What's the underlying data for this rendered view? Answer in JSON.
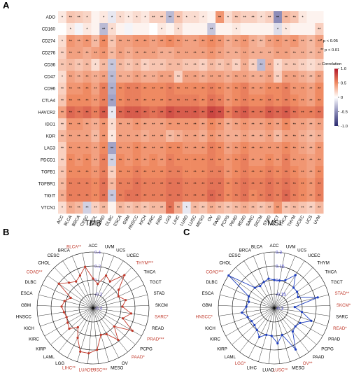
{
  "chart_data": [
    {
      "type": "heatmap",
      "panel": "A",
      "rows": [
        "ADO",
        "CD160",
        "CD274",
        "CD276",
        "CD36",
        "CD47",
        "CD96",
        "CTLA4",
        "HAVCR2",
        "IDO1",
        "KDR",
        "LAG3",
        "PDCD1",
        "TGFB1",
        "TGFBR1",
        "TIGIT",
        "VTCN1"
      ],
      "columns": [
        "ACC",
        "BLCA",
        "BRCA",
        "CESC",
        "CHOL",
        "COAD",
        "DLBC",
        "ESCA",
        "GBM",
        "HNSCC",
        "KICH",
        "KIRC",
        "KIRP",
        "LGG",
        "LIHC",
        "LUAD",
        "LUSC",
        "MESO",
        "OV",
        "PAAD",
        "PCPG",
        "PRAD",
        "READ",
        "SARC",
        "SKCM",
        "STAD",
        "TGCT",
        "THCA",
        "THYM",
        "UCEC",
        "UCS",
        "UVM"
      ],
      "values": [
        [
          0.1,
          0.25,
          0.22,
          0.18,
          0.05,
          0.1,
          -0.1,
          0.15,
          0.1,
          0.15,
          0.1,
          0.2,
          0.2,
          -0.3,
          0.25,
          0.15,
          0.15,
          0.1,
          0.05,
          0.45,
          0.15,
          0.25,
          0.2,
          0.2,
          0.15,
          0.2,
          -0.5,
          0.3,
          0.25,
          0.1,
          0.05,
          0.05
        ],
        [
          0.0,
          0.1,
          -0.05,
          0.1,
          0.05,
          -0.3,
          0.15,
          0.05,
          -0.05,
          0.05,
          0.05,
          0.0,
          0.1,
          0.05,
          0.15,
          0.05,
          0.05,
          0.05,
          -0.25,
          0.05,
          0.05,
          0.1,
          0.05,
          0.05,
          0.05,
          0.05,
          -0.15,
          0.1,
          0.05,
          0.05,
          0.05,
          0.2
        ],
        [
          0.15,
          0.45,
          0.4,
          0.45,
          0.3,
          0.5,
          0.25,
          0.4,
          0.4,
          0.45,
          0.45,
          0.4,
          0.45,
          0.5,
          0.45,
          0.4,
          0.4,
          0.45,
          0.5,
          0.45,
          0.35,
          0.4,
          0.45,
          0.35,
          0.3,
          0.4,
          0.45,
          0.4,
          0.45,
          0.35,
          0.3,
          0.4
        ],
        [
          0.2,
          0.4,
          0.4,
          0.35,
          0.4,
          0.45,
          0.3,
          0.4,
          0.35,
          0.4,
          0.4,
          0.4,
          0.35,
          0.35,
          0.4,
          0.4,
          0.4,
          0.4,
          0.45,
          0.4,
          0.35,
          0.35,
          0.4,
          0.35,
          0.35,
          0.35,
          0.4,
          0.4,
          0.35,
          0.35,
          0.3,
          0.35
        ],
        [
          0.25,
          0.3,
          0.25,
          0.3,
          0.15,
          0.3,
          -0.25,
          0.3,
          0.25,
          0.3,
          0.2,
          0.25,
          0.25,
          0.3,
          0.3,
          0.25,
          0.25,
          0.2,
          0.3,
          0.25,
          0.3,
          0.2,
          0.35,
          0.2,
          -0.3,
          0.35,
          0.15,
          0.25,
          0.25,
          0.2,
          0.15,
          0.2
        ],
        [
          0.15,
          0.4,
          0.35,
          0.4,
          0.35,
          0.4,
          -0.3,
          0.35,
          0.35,
          0.4,
          0.35,
          0.35,
          0.4,
          0.4,
          0.2,
          0.4,
          0.4,
          0.35,
          0.4,
          0.4,
          0.35,
          0.4,
          0.4,
          0.35,
          0.35,
          0.4,
          0.2,
          0.4,
          0.4,
          0.35,
          0.3,
          0.4
        ],
        [
          0.2,
          0.45,
          0.45,
          0.5,
          0.4,
          0.55,
          -0.35,
          0.5,
          0.55,
          0.55,
          0.5,
          0.5,
          0.5,
          0.55,
          0.5,
          0.5,
          0.5,
          0.5,
          0.55,
          0.5,
          0.45,
          0.5,
          0.55,
          0.45,
          0.45,
          0.5,
          0.5,
          0.55,
          0.45,
          0.45,
          0.4,
          0.5
        ],
        [
          0.25,
          0.5,
          0.5,
          0.5,
          0.45,
          0.55,
          -0.4,
          0.5,
          0.55,
          0.55,
          0.5,
          0.5,
          0.5,
          0.55,
          0.55,
          0.55,
          0.55,
          0.5,
          0.6,
          0.55,
          0.45,
          0.5,
          0.55,
          0.5,
          0.5,
          0.55,
          0.5,
          0.55,
          0.5,
          0.45,
          0.4,
          0.5
        ],
        [
          0.4,
          0.65,
          0.6,
          0.65,
          0.55,
          0.7,
          -0.1,
          0.65,
          0.7,
          0.7,
          0.65,
          0.6,
          0.65,
          0.75,
          0.7,
          0.7,
          0.7,
          0.65,
          0.8,
          0.75,
          0.55,
          0.65,
          0.7,
          0.6,
          0.6,
          0.7,
          0.65,
          0.7,
          0.6,
          0.55,
          0.55,
          0.6
        ],
        [
          0.2,
          0.45,
          0.45,
          0.4,
          0.35,
          0.45,
          0.15,
          0.4,
          0.4,
          0.45,
          0.4,
          0.4,
          0.4,
          0.45,
          0.45,
          0.45,
          0.45,
          0.4,
          0.5,
          0.45,
          0.35,
          0.4,
          0.45,
          0.4,
          0.4,
          0.45,
          0.4,
          0.5,
          0.4,
          0.4,
          0.35,
          0.4
        ],
        [
          0.3,
          0.4,
          0.4,
          0.4,
          0.3,
          0.45,
          0.1,
          0.4,
          0.4,
          0.4,
          0.35,
          0.4,
          0.4,
          0.3,
          0.35,
          0.4,
          0.4,
          0.35,
          0.45,
          0.4,
          0.35,
          0.35,
          0.4,
          0.35,
          0.35,
          0.4,
          0.3,
          0.4,
          0.4,
          0.35,
          0.3,
          0.35
        ],
        [
          0.2,
          0.45,
          0.45,
          0.45,
          0.4,
          0.5,
          -0.4,
          0.45,
          0.45,
          0.5,
          0.45,
          0.45,
          0.45,
          0.5,
          0.5,
          0.45,
          0.45,
          0.45,
          0.55,
          0.5,
          0.4,
          0.45,
          0.5,
          0.45,
          0.45,
          0.45,
          0.45,
          0.5,
          0.45,
          0.4,
          0.35,
          0.45
        ],
        [
          0.2,
          0.5,
          0.45,
          0.5,
          0.4,
          0.55,
          -0.2,
          0.5,
          0.45,
          0.5,
          0.45,
          0.5,
          0.45,
          0.55,
          0.5,
          0.5,
          0.5,
          0.5,
          0.55,
          0.5,
          0.45,
          0.5,
          0.55,
          0.45,
          0.45,
          0.5,
          0.45,
          0.55,
          0.45,
          0.45,
          0.4,
          0.45
        ],
        [
          0.25,
          0.5,
          0.5,
          0.5,
          0.45,
          0.55,
          0.2,
          0.5,
          0.5,
          0.55,
          0.5,
          0.5,
          0.5,
          0.55,
          0.55,
          0.5,
          0.5,
          0.5,
          0.55,
          0.55,
          0.45,
          0.5,
          0.55,
          0.5,
          0.5,
          0.55,
          0.5,
          0.55,
          0.5,
          0.45,
          0.4,
          0.5
        ],
        [
          0.3,
          0.55,
          0.55,
          0.55,
          0.5,
          0.6,
          0.3,
          0.55,
          0.55,
          0.6,
          0.55,
          0.55,
          0.55,
          0.6,
          0.6,
          0.55,
          0.55,
          0.55,
          0.6,
          0.6,
          0.5,
          0.55,
          0.6,
          0.55,
          0.55,
          0.6,
          0.55,
          0.6,
          0.55,
          0.5,
          0.45,
          0.55
        ],
        [
          0.35,
          0.55,
          0.55,
          0.55,
          0.5,
          0.6,
          -0.25,
          0.55,
          0.6,
          0.6,
          0.55,
          0.55,
          0.55,
          0.6,
          0.6,
          0.55,
          0.55,
          0.55,
          0.65,
          0.6,
          0.5,
          0.55,
          0.6,
          0.5,
          0.55,
          0.6,
          0.55,
          0.65,
          0.55,
          0.5,
          0.45,
          0.55
        ],
        [
          0.15,
          0.35,
          0.3,
          -0.2,
          0.2,
          0.3,
          0.05,
          0.3,
          0.25,
          0.3,
          0.25,
          0.3,
          0.3,
          0.6,
          0.35,
          -0.1,
          0.3,
          0.25,
          0.35,
          0.3,
          0.25,
          0.3,
          0.35,
          0.3,
          0.25,
          0.3,
          0.45,
          0.25,
          0.3,
          0.25,
          0.2,
          0.3
        ]
      ],
      "stars_note": [
        "* p < 0.05",
        "** p < 0.01"
      ],
      "colorbar": {
        "title": "Correlation",
        "ticks": [
          1.0,
          0.5,
          0,
          -0.5,
          -1.0
        ],
        "range": [
          -1,
          1
        ],
        "low_color": "#2b2a6e",
        "mid_color": "#ffffff",
        "high_color": "#b2182b"
      }
    },
    {
      "type": "radar",
      "panel": "B",
      "title": "TMB",
      "categories": [
        "ACC",
        "UVM",
        "UCS",
        "UCEC",
        "THYM",
        "THCA",
        "TGCT",
        "STAD",
        "SKCM",
        "SARC",
        "READ",
        "PRAD",
        "PCPG",
        "PAAD",
        "OV",
        "MESO",
        "LUSC",
        "LUAD",
        "LIHC",
        "LGG",
        "LAML",
        "KIRP",
        "KIRC",
        "KICH",
        "HNSCC",
        "GBM",
        "ESCA",
        "DLBC",
        "COAD",
        "CHOL",
        "CESC",
        "BRCA",
        "BLCA"
      ],
      "label_texts": [
        "ACC",
        "UVM",
        "UCS",
        "UCEC",
        "THYM***",
        "THCA",
        "TGCT",
        "STAD",
        "SKCM",
        "SARC*",
        "READ",
        "PRAD***",
        "PCPG",
        "PAAD*",
        "OV",
        "MESO",
        "LUSC***",
        "LUAD***",
        "LIHC**",
        "LGG",
        "LAML",
        "KIRP",
        "KIRC",
        "KICH",
        "HNSCC",
        "GBM",
        "ESCA",
        "DLBC",
        "COAD**",
        "CHOL",
        "CESC",
        "BRCA",
        "BLCA**"
      ],
      "significant": [
        "BLCA**",
        "THYM***",
        "SARC*",
        "PRAD***",
        "PAAD*",
        "LUSC***",
        "LUAD***",
        "LIHC**",
        "COAD**"
      ],
      "values": [
        0.02,
        -0.05,
        0.1,
        0.05,
        0.25,
        0.05,
        0.0,
        0.08,
        0.02,
        0.15,
        0.05,
        0.25,
        0.0,
        0.18,
        0.02,
        0.0,
        0.2,
        0.25,
        0.25,
        0.08,
        -0.05,
        0.05,
        0.02,
        0.0,
        0.02,
        0.05,
        0.02,
        -0.05,
        0.2,
        0.1,
        0.05,
        0.1,
        0.2
      ],
      "rticks": [
        -0.4,
        -0.2,
        0,
        0.2,
        0.4
      ],
      "rlim": [
        -0.4,
        0.4
      ],
      "line_color": "#c0392b",
      "tick_color": "#6a5acd"
    },
    {
      "type": "radar",
      "panel": "C",
      "title": "MSI",
      "categories": [
        "ACC",
        "UVM",
        "UCS",
        "UCEC",
        "THYM",
        "THCA",
        "TGCT",
        "STAD",
        "SKCM",
        "SARC",
        "READ",
        "PRAD",
        "PCPG",
        "PAAD",
        "OV",
        "MESO",
        "LUSC",
        "LUAD",
        "LIHC",
        "LGG",
        "LAML",
        "KIRP",
        "KIRC",
        "KICH",
        "HNSCC",
        "GBM",
        "ESCA",
        "DLBC",
        "COAD",
        "CHOL",
        "CESC",
        "BRCA",
        "BLCA"
      ],
      "label_texts": [
        "ACC",
        "UVM",
        "UCS",
        "UCEC",
        "THYM",
        "THCA",
        "TGCT",
        "STAD**",
        "SKCM*",
        "SARC",
        "READ*",
        "PRAD",
        "PCPG",
        "PAAD",
        "OV**",
        "MESO",
        "LUSC**",
        "LUAD",
        "LIHC",
        "LGG*",
        "LAML",
        "KIRP",
        "KIRC",
        "KICH",
        "HNSCC*",
        "GBM",
        "ESCA",
        "DLBC",
        "COAD***",
        "CHOL",
        "CESC",
        "BRCA",
        "BLCA"
      ],
      "significant": [
        "COAD***",
        "STAD**",
        "SKCM*",
        "HNSCC*",
        "READ*",
        "LGG*",
        "OV**",
        "LUSC**"
      ],
      "values": [
        0.0,
        0.0,
        0.02,
        0.12,
        0.0,
        0.0,
        -0.02,
        0.18,
        -0.08,
        0.0,
        0.12,
        0.02,
        0.0,
        0.02,
        0.2,
        0.0,
        0.08,
        0.0,
        0.0,
        0.05,
        0.0,
        -0.02,
        -0.02,
        0.0,
        0.05,
        0.0,
        -0.02,
        0.0,
        0.3,
        0.0,
        -0.02,
        0.0,
        0.02
      ],
      "rticks": [
        -0.3,
        -0.15,
        0,
        0.15,
        0.3
      ],
      "rlim": [
        -0.3,
        0.3
      ],
      "line_color": "#1f3fbf",
      "tick_color": "#3f3fcf"
    }
  ]
}
